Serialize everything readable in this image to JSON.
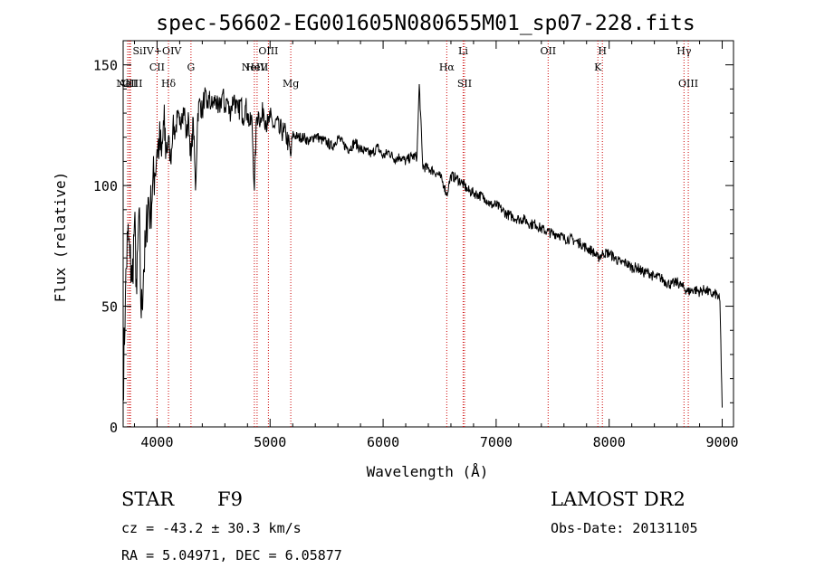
{
  "chart_data": {
    "type": "line",
    "title": "spec-56602-EG001605N080655M01_sp07-228.fits",
    "xlabel": "Wavelength (Å)",
    "ylabel": "Flux (relative)",
    "xlim": [
      3700,
      9100
    ],
    "ylim": [
      0,
      160
    ],
    "xticks": [
      4000,
      5000,
      6000,
      7000,
      8000,
      9000
    ],
    "yticks": [
      0,
      50,
      100,
      150
    ],
    "series": [
      {
        "x": [
          3700,
          3720,
          3740,
          3760,
          3780,
          3800,
          3820,
          3840,
          3860,
          3880,
          3900,
          3920,
          3940,
          3960,
          3980,
          4000,
          4020,
          4040,
          4060,
          4080,
          4100,
          4120,
          4140,
          4160,
          4180,
          4200,
          4220,
          4240,
          4260,
          4280,
          4300,
          4320,
          4340,
          4360,
          4380,
          4400,
          4420,
          4440,
          4460,
          4480,
          4500,
          4520,
          4540,
          4560,
          4580,
          4600,
          4620,
          4640,
          4660,
          4680,
          4700,
          4720,
          4740,
          4760,
          4780,
          4800,
          4820,
          4840,
          4861,
          4880,
          4900,
          4920,
          4940,
          4960,
          4980,
          5000,
          5020,
          5040,
          5060,
          5080,
          5100,
          5120,
          5140,
          5160,
          5183,
          5200,
          5250,
          5300,
          5350,
          5400,
          5450,
          5500,
          5550,
          5600,
          5650,
          5700,
          5750,
          5800,
          5850,
          5900,
          5950,
          6000,
          6050,
          6100,
          6150,
          6200,
          6250,
          6300,
          6320,
          6350,
          6400,
          6450,
          6500,
          6540,
          6563,
          6580,
          6600,
          6650,
          6700,
          6750,
          6800,
          6850,
          6900,
          6950,
          7000,
          7050,
          7100,
          7150,
          7200,
          7250,
          7300,
          7350,
          7400,
          7450,
          7500,
          7550,
          7600,
          7650,
          7700,
          7750,
          7800,
          7850,
          7900,
          7950,
          8000,
          8050,
          8100,
          8150,
          8200,
          8250,
          8300,
          8350,
          8400,
          8450,
          8500,
          8550,
          8600,
          8650,
          8700,
          8750,
          8800,
          8850,
          8900,
          8950,
          8980,
          9000
        ],
        "y": [
          15,
          55,
          80,
          70,
          60,
          85,
          55,
          90,
          45,
          65,
          75,
          95,
          88,
          100,
          105,
          115,
          118,
          112,
          125,
          115,
          120,
          110,
          125,
          122,
          128,
          125,
          130,
          132,
          120,
          128,
          110,
          128,
          98,
          130,
          135,
          130,
          138,
          132,
          136,
          133,
          134,
          136,
          130,
          134,
          138,
          132,
          136,
          130,
          133,
          137,
          132,
          130,
          135,
          128,
          133,
          130,
          125,
          127,
          98,
          128,
          130,
          126,
          132,
          127,
          125,
          128,
          126,
          124,
          127,
          122,
          123,
          122,
          121,
          118,
          112,
          121,
          120,
          120,
          118,
          121,
          119,
          118,
          116,
          120,
          117,
          115,
          118,
          115,
          114,
          113,
          116,
          112,
          114,
          111,
          112,
          110,
          112,
          112,
          142,
          108,
          107,
          106,
          104,
          100,
          96,
          100,
          104,
          103,
          101,
          98,
          97,
          96,
          95,
          92,
          92,
          90,
          88,
          87,
          86,
          86,
          84,
          84,
          82,
          81,
          80,
          80,
          78,
          78,
          77,
          76,
          74,
          73,
          70,
          72,
          72,
          70,
          68,
          68,
          66,
          66,
          64,
          64,
          62,
          62,
          60,
          59,
          60,
          58,
          56,
          57,
          56,
          57,
          55,
          55,
          52,
          8
        ]
      }
    ],
    "spectral_lines": [
      {
        "label": "AlII",
        "x": 3740,
        "row": 3
      },
      {
        "label": "NaIII",
        "x": 3755,
        "row": 3
      },
      {
        "label": "OII",
        "x": 3765,
        "row": 3
      },
      {
        "label": "SiIV+OIV",
        "x": 4000,
        "row": 1
      },
      {
        "label": "CII",
        "x": 4000,
        "row": 2
      },
      {
        "label": "Hδ",
        "x": 4101,
        "row": 3
      },
      {
        "label": "G",
        "x": 4300,
        "row": 2
      },
      {
        "label": "OIII",
        "x": 4985,
        "row": 1
      },
      {
        "label": "NeIV",
        "x": 4861,
        "row": 2
      },
      {
        "label": "HeII",
        "x": 4885,
        "row": 2
      },
      {
        "label": "Mg",
        "x": 5183,
        "row": 3
      },
      {
        "label": "Hα",
        "x": 6563,
        "row": 2
      },
      {
        "label": "Li",
        "x": 6708,
        "row": 1
      },
      {
        "label": "SII",
        "x": 6720,
        "row": 3
      },
      {
        "label": "OII",
        "x": 7460,
        "row": 1
      },
      {
        "label": "K",
        "x": 7900,
        "row": 2
      },
      {
        "label": "H",
        "x": 7940,
        "row": 1
      },
      {
        "label": "Hγ",
        "x": 8662,
        "row": 1
      },
      {
        "label": "OIII",
        "x": 8700,
        "row": 3
      }
    ],
    "grid": false,
    "legend": "none"
  },
  "footer": {
    "object_type": "STAR",
    "subclass": "F9",
    "survey": "LAMOST DR2",
    "redshift": "cz = -43.2 ± 30.3 km/s",
    "obs_date": "Obs-Date: 20131105",
    "coords": "RA =   5.04971, DEC =   6.05877"
  }
}
